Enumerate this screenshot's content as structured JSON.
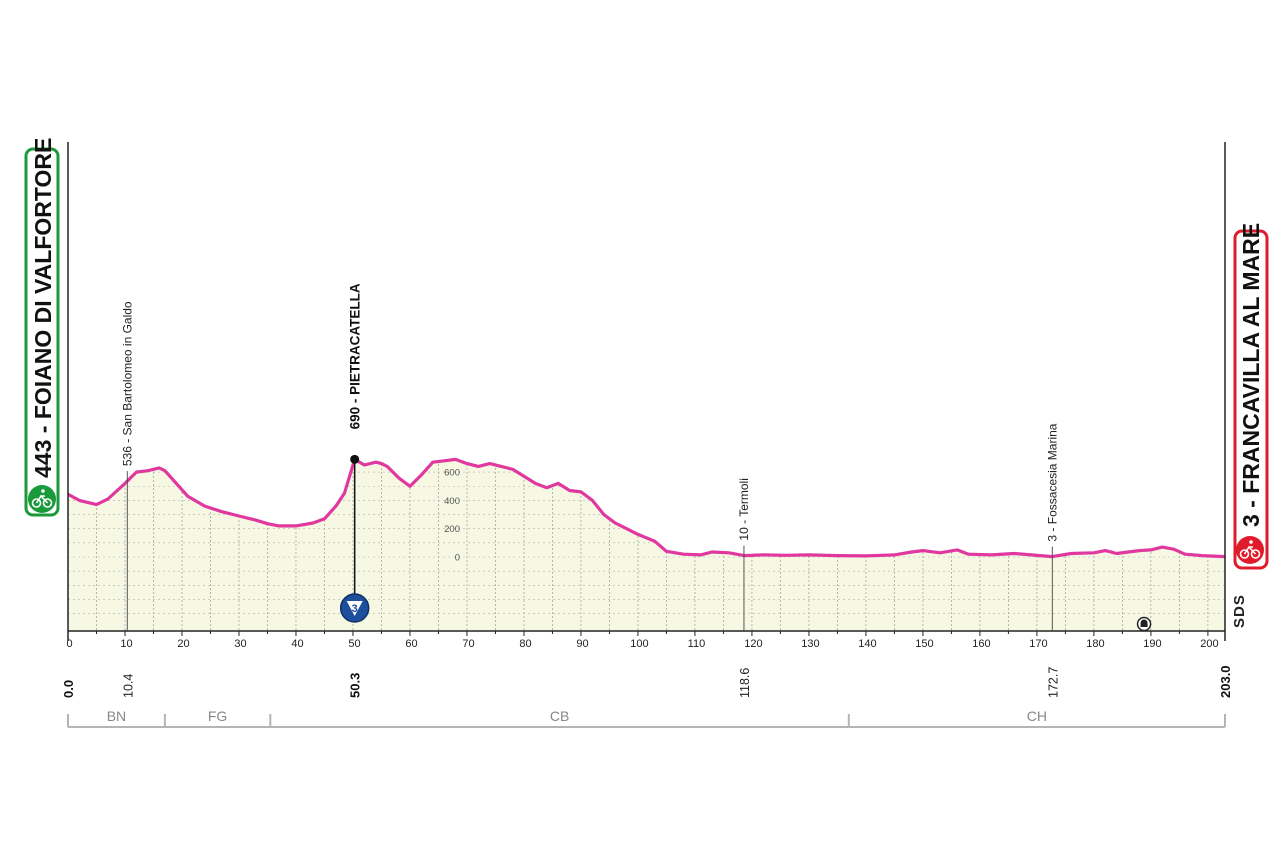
{
  "start": {
    "altitude": "443",
    "name": "FOIANO DI VALFORTORE",
    "km": "0.0",
    "icon": "bicycle-icon",
    "color": "#1a9a3a"
  },
  "finish": {
    "altitude": "3",
    "name": "FRANCAVILLA AL MARE",
    "km": "203.0",
    "icon": "bicycle-icon",
    "color": "#e01c2c"
  },
  "side_label": "SDS",
  "regions": [
    {
      "code": "BN",
      "from_km": 0,
      "to_km": 17
    },
    {
      "code": "FG",
      "from_km": 17,
      "to_km": 35.5
    },
    {
      "code": "CB",
      "from_km": 35.5,
      "to_km": 137
    },
    {
      "code": "CH",
      "from_km": 137,
      "to_km": 203
    }
  ],
  "chart_data": {
    "type": "area",
    "x_label_unit": "km",
    "xlim": [
      0,
      203
    ],
    "x_ticks": [
      0,
      10,
      20,
      30,
      40,
      50,
      60,
      70,
      80,
      90,
      100,
      110,
      120,
      130,
      140,
      150,
      160,
      170,
      180,
      190,
      200
    ],
    "y_ticks": [
      0,
      200,
      400,
      600
    ],
    "line_color": "#e0389e",
    "fill_color": "#f6f8e4",
    "elevation_profile": [
      [
        0,
        443
      ],
      [
        2,
        400
      ],
      [
        5,
        370
      ],
      [
        7,
        410
      ],
      [
        10,
        520
      ],
      [
        12,
        600
      ],
      [
        14,
        610
      ],
      [
        16,
        630
      ],
      [
        17,
        610
      ],
      [
        19,
        520
      ],
      [
        21,
        430
      ],
      [
        24,
        360
      ],
      [
        27,
        320
      ],
      [
        30,
        290
      ],
      [
        33,
        260
      ],
      [
        35,
        235
      ],
      [
        37,
        220
      ],
      [
        40,
        220
      ],
      [
        43,
        240
      ],
      [
        45,
        270
      ],
      [
        47,
        360
      ],
      [
        48.5,
        450
      ],
      [
        50.3,
        690
      ],
      [
        52,
        650
      ],
      [
        54,
        670
      ],
      [
        55,
        660
      ],
      [
        56,
        640
      ],
      [
        58,
        560
      ],
      [
        60,
        500
      ],
      [
        62,
        580
      ],
      [
        64,
        670
      ],
      [
        66,
        680
      ],
      [
        68,
        690
      ],
      [
        70,
        660
      ],
      [
        72,
        640
      ],
      [
        74,
        660
      ],
      [
        76,
        640
      ],
      [
        78,
        620
      ],
      [
        80,
        570
      ],
      [
        82,
        520
      ],
      [
        84,
        490
      ],
      [
        86,
        520
      ],
      [
        88,
        470
      ],
      [
        90,
        460
      ],
      [
        92,
        400
      ],
      [
        94,
        300
      ],
      [
        96,
        240
      ],
      [
        98,
        200
      ],
      [
        100,
        160
      ],
      [
        103,
        110
      ],
      [
        105,
        40
      ],
      [
        108,
        20
      ],
      [
        111,
        15
      ],
      [
        113,
        35
      ],
      [
        116,
        30
      ],
      [
        118.6,
        10
      ],
      [
        122,
        15
      ],
      [
        126,
        12
      ],
      [
        130,
        15
      ],
      [
        135,
        10
      ],
      [
        140,
        8
      ],
      [
        145,
        15
      ],
      [
        148,
        35
      ],
      [
        150,
        45
      ],
      [
        153,
        30
      ],
      [
        156,
        50
      ],
      [
        158,
        20
      ],
      [
        162,
        15
      ],
      [
        166,
        25
      ],
      [
        169,
        15
      ],
      [
        172.7,
        3
      ],
      [
        176,
        25
      ],
      [
        180,
        30
      ],
      [
        182,
        45
      ],
      [
        184,
        25
      ],
      [
        186,
        35
      ],
      [
        188,
        45
      ],
      [
        190,
        50
      ],
      [
        192,
        70
      ],
      [
        194,
        55
      ],
      [
        196,
        20
      ],
      [
        199,
        10
      ],
      [
        203,
        3
      ]
    ],
    "waypoints": [
      {
        "km": 10.4,
        "km_label": "10.4",
        "label": "536 - San Bartolomeo in Galdo",
        "altitude": 536
      },
      {
        "km": 118.6,
        "km_label": "118.6",
        "label": "10 - Termoli",
        "altitude": 10
      },
      {
        "km": 172.7,
        "km_label": "172.7",
        "label": "3 - Fossacesia Marina",
        "altitude": 3
      }
    ],
    "climbs": [
      {
        "km": 50.3,
        "km_label": "50.3",
        "label": "690 - PIETRACATELLA",
        "altitude": 690,
        "category": "3"
      }
    ],
    "markers": [
      {
        "km": 188.8,
        "icon": "tunnel-icon"
      }
    ]
  }
}
